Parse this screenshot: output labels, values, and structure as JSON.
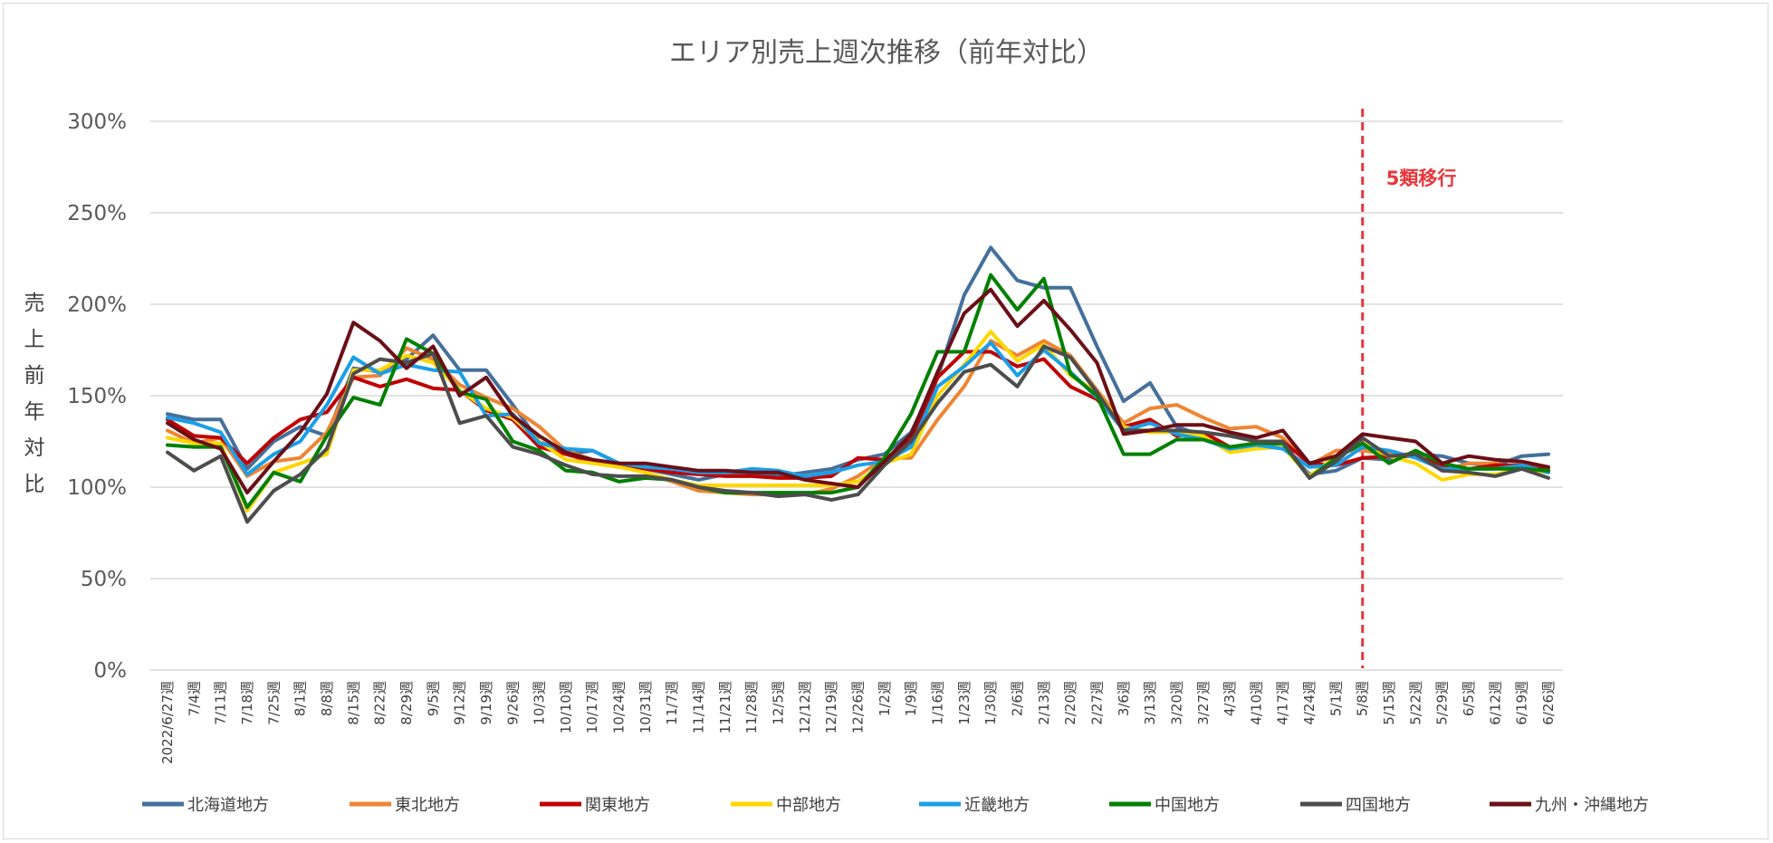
{
  "chart_data": {
    "type": "line",
    "title": "エリア別売上週次推移（前年対比）",
    "ylabel": "売上前年対比",
    "xlabel": "",
    "ylim": [
      0,
      300
    ],
    "yticks": [
      "0%",
      "50%",
      "100%",
      "150%",
      "200%",
      "250%",
      "300%"
    ],
    "grid": true,
    "legend_position": "bottom",
    "categories": [
      "2022/6/27週",
      "7/4週",
      "7/11週",
      "7/18週",
      "7/25週",
      "8/1週",
      "8/8週",
      "8/15週",
      "8/22週",
      "8/29週",
      "9/5週",
      "9/12週",
      "9/19週",
      "9/26週",
      "10/3週",
      "10/10週",
      "10/17週",
      "10/24週",
      "10/31週",
      "11/7週",
      "11/14週",
      "11/21週",
      "11/28週",
      "12/5週",
      "12/12週",
      "12/19週",
      "12/26週",
      "1/2週",
      "1/9週",
      "1/16週",
      "1/23週",
      "1/30週",
      "2/6週",
      "2/13週",
      "2/20週",
      "2/27週",
      "3/6週",
      "3/13週",
      "3/20週",
      "3/27週",
      "4/3週",
      "4/10週",
      "4/17週",
      "4/24週",
      "5/1週",
      "5/8週",
      "5/15週",
      "5/22週",
      "5/29週",
      "6/5週",
      "6/12週",
      "6/19週",
      "6/26週"
    ],
    "annotation": {
      "label": "5類移行",
      "x": "5/8週",
      "color": "#e8363c"
    },
    "series": [
      {
        "name": "北海道地方",
        "color": "#44709b",
        "values": [
          140,
          137,
          137,
          110,
          125,
          133,
          128,
          165,
          163,
          170,
          183,
          164,
          164,
          145,
          125,
          118,
          120,
          113,
          110,
          107,
          104,
          107,
          108,
          106,
          108,
          110,
          115,
          118,
          130,
          160,
          205,
          231,
          213,
          209,
          209,
          177,
          147,
          157,
          133,
          128,
          121,
          124,
          122,
          107,
          109,
          116,
          115,
          118,
          117,
          113,
          112,
          117,
          118
        ]
      },
      {
        "name": "東北地方",
        "color": "#ee8533",
        "values": [
          131,
          124,
          127,
          106,
          114,
          116,
          130,
          160,
          161,
          176,
          170,
          156,
          149,
          143,
          133,
          120,
          115,
          112,
          108,
          103,
          98,
          97,
          96,
          96,
          96,
          99,
          106,
          116,
          116,
          137,
          155,
          180,
          172,
          180,
          172,
          153,
          135,
          143,
          145,
          138,
          132,
          133,
          127,
          112,
          120,
          120,
          118,
          118,
          109,
          113,
          113,
          110,
          110
        ]
      },
      {
        "name": "関東地方",
        "color": "#c00000",
        "values": [
          137,
          128,
          127,
          113,
          127,
          137,
          141,
          160,
          155,
          159,
          154,
          153,
          142,
          137,
          122,
          118,
          114,
          111,
          110,
          108,
          107,
          106,
          106,
          105,
          105,
          106,
          116,
          115,
          126,
          160,
          174,
          174,
          166,
          170,
          155,
          148,
          133,
          137,
          128,
          130,
          122,
          123,
          125,
          113,
          112,
          116,
          117,
          117,
          112,
          110,
          112,
          112,
          109
        ]
      },
      {
        "name": "中部地方",
        "color": "#ffd700",
        "values": [
          127,
          124,
          124,
          87,
          108,
          113,
          118,
          164,
          164,
          172,
          168,
          153,
          143,
          138,
          125,
          115,
          113,
          111,
          108,
          104,
          101,
          101,
          101,
          101,
          101,
          101,
          103,
          113,
          118,
          150,
          167,
          185,
          169,
          178,
          161,
          152,
          133,
          130,
          130,
          128,
          119,
          121,
          122,
          106,
          117,
          124,
          117,
          113,
          104,
          107,
          107,
          110,
          108
        ]
      },
      {
        "name": "近畿地方",
        "color": "#1a9fe8",
        "values": [
          138,
          135,
          130,
          107,
          118,
          125,
          145,
          171,
          162,
          167,
          164,
          163,
          139,
          140,
          124,
          121,
          120,
          113,
          111,
          110,
          108,
          108,
          110,
          109,
          106,
          108,
          112,
          114,
          122,
          155,
          166,
          179,
          161,
          175,
          163,
          149,
          131,
          135,
          129,
          126,
          121,
          123,
          121,
          111,
          112,
          122,
          120,
          116,
          110,
          110,
          110,
          112,
          108
        ]
      },
      {
        "name": "中国地方",
        "color": "#008000",
        "values": [
          123,
          122,
          122,
          89,
          108,
          103,
          128,
          149,
          145,
          181,
          173,
          152,
          148,
          125,
          120,
          109,
          108,
          103,
          105,
          104,
          100,
          97,
          97,
          97,
          97,
          97,
          100,
          116,
          140,
          174,
          174,
          216,
          197,
          214,
          162,
          150,
          118,
          118,
          126,
          126,
          122,
          124,
          124,
          105,
          116,
          124,
          113,
          120,
          113,
          110,
          110,
          110,
          109
        ]
      },
      {
        "name": "四国地方",
        "color": "#4d4d4d",
        "values": [
          119,
          109,
          117,
          81,
          98,
          107,
          121,
          162,
          170,
          168,
          173,
          135,
          139,
          122,
          118,
          112,
          107,
          106,
          106,
          104,
          100,
          98,
          97,
          95,
          96,
          93,
          96,
          112,
          125,
          146,
          163,
          167,
          155,
          177,
          171,
          152,
          131,
          131,
          131,
          130,
          128,
          125,
          125,
          105,
          114,
          127,
          117,
          118,
          109,
          108,
          106,
          110,
          105
        ]
      },
      {
        "name": "九州・沖縄地方",
        "color": "#6b0f17",
        "values": [
          135,
          126,
          121,
          97,
          114,
          130,
          151,
          190,
          180,
          165,
          177,
          150,
          160,
          139,
          128,
          119,
          115,
          113,
          113,
          111,
          109,
          109,
          108,
          108,
          104,
          102,
          100,
          114,
          129,
          163,
          195,
          208,
          188,
          202,
          186,
          168,
          129,
          131,
          134,
          134,
          130,
          127,
          131,
          113,
          117,
          129,
          127,
          125,
          113,
          117,
          115,
          114,
          111
        ]
      }
    ]
  }
}
